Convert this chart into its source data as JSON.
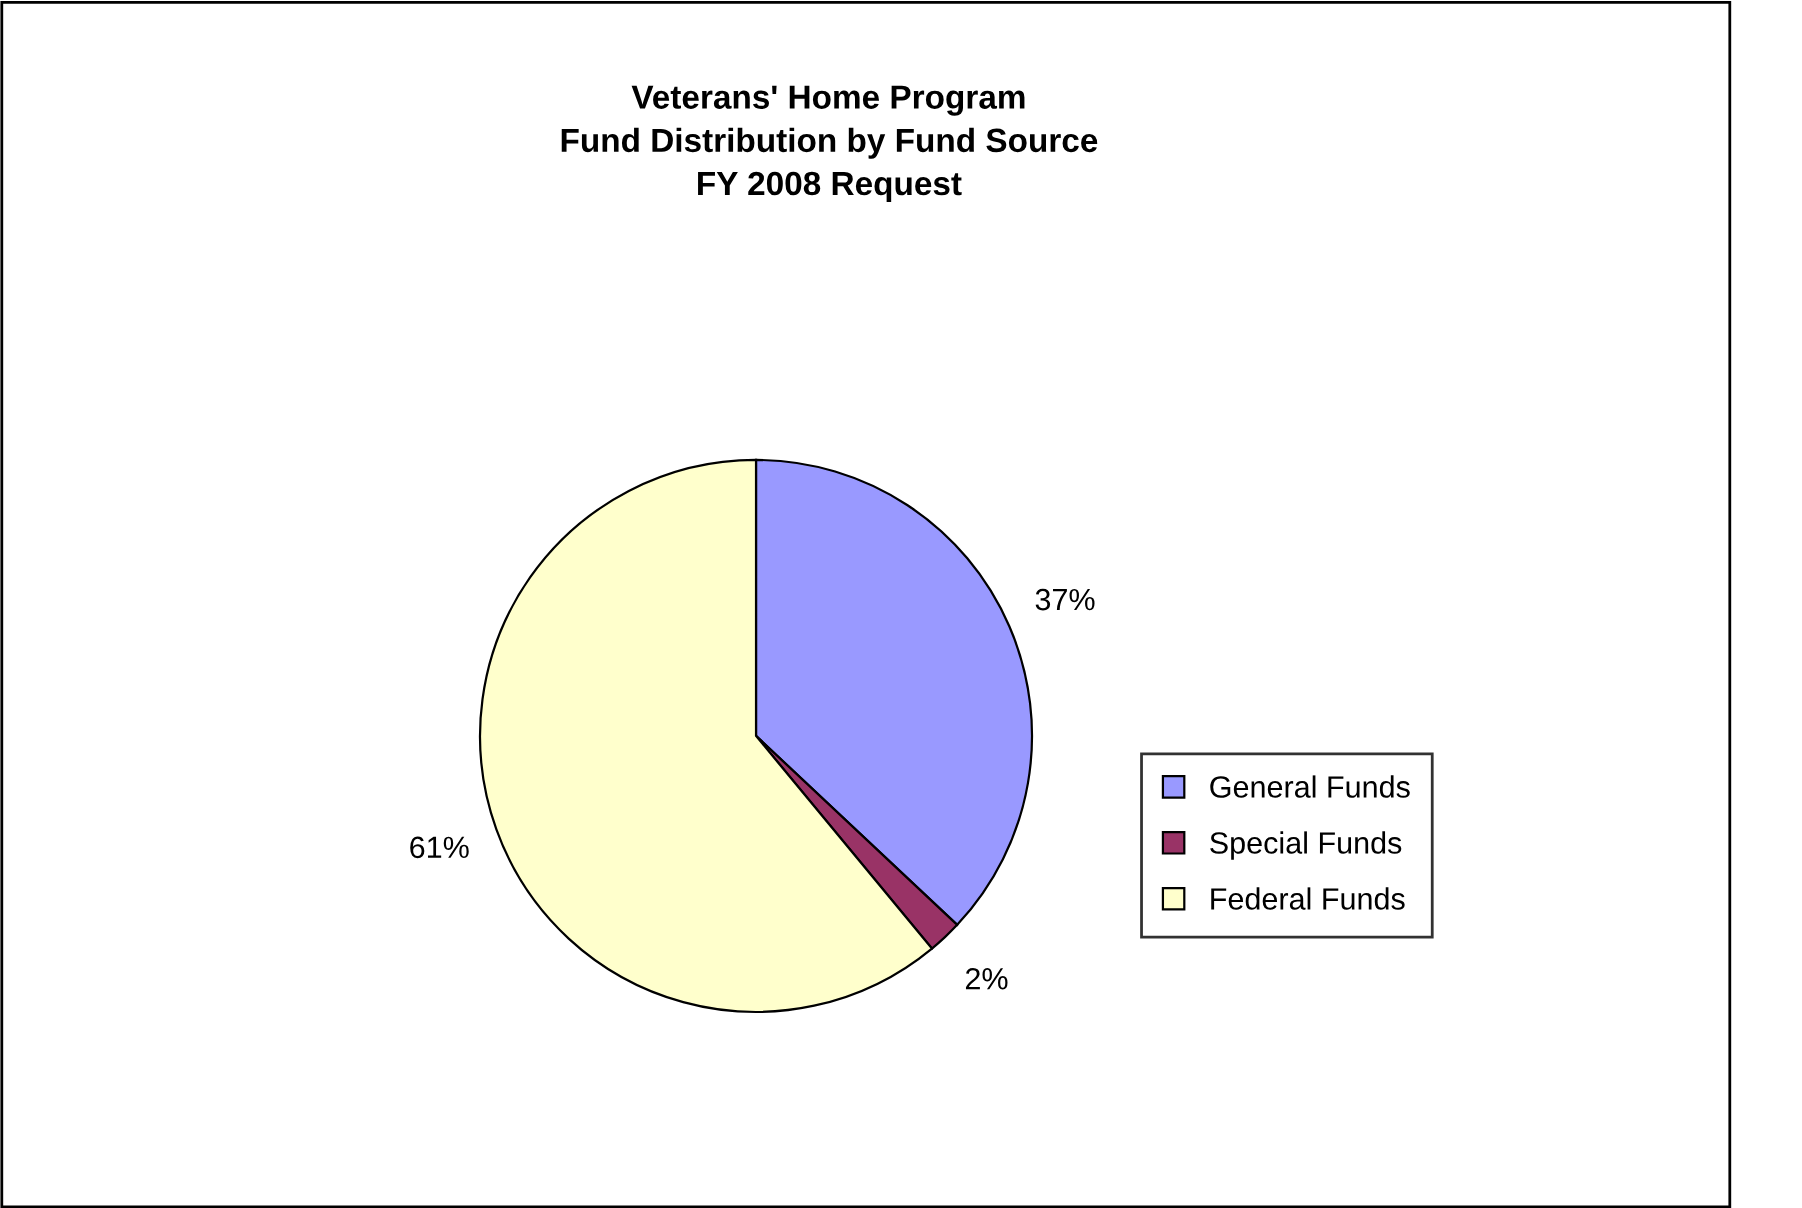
{
  "chart_data": {
    "type": "pie",
    "title": "Veterans' Home Program\nFund Distribution by Fund Source\nFY 2008 Request",
    "categories": [
      "General Funds",
      "Special Funds",
      "Federal Funds"
    ],
    "values": [
      37,
      2,
      61
    ],
    "colors": [
      "#9999ff",
      "#993366",
      "#ffffcc"
    ],
    "value_labels": [
      "37%",
      "2%",
      "61%"
    ],
    "legend": "right"
  }
}
